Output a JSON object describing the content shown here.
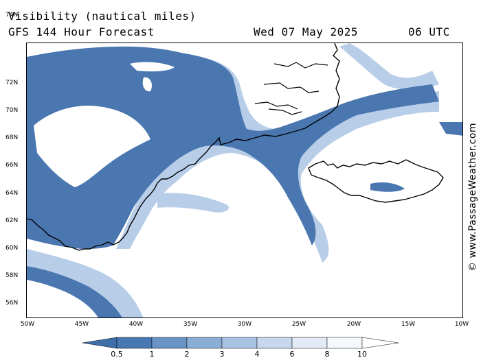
{
  "header": {
    "title": "Visibility (nautical miles)",
    "model": "GFS 144 Hour Forecast",
    "date": "Wed 07 May 2025",
    "time": "06 UTC"
  },
  "credit": "© www.PassageWeather.com",
  "axes": {
    "lat_labels": [
      "74N",
      "72N",
      "70N",
      "68N",
      "66N",
      "64N",
      "62N",
      "60N",
      "58N",
      "56N"
    ],
    "lon_labels": [
      "50W",
      "45W",
      "40W",
      "35W",
      "30W",
      "25W",
      "20W",
      "15W",
      "10W"
    ]
  },
  "legend": {
    "labels": [
      "0.5",
      "1",
      "2",
      "3",
      "4",
      "6",
      "8",
      "10"
    ],
    "colors": [
      "#3e6fa9",
      "#4878b3",
      "#6a93c6",
      "#8aaed6",
      "#a8c3e2",
      "#c7d8ee",
      "#e2ebf6",
      "#f5f8fc",
      "#ffffff"
    ]
  },
  "map_colors": {
    "low": "#4a77b0",
    "mid": "#7fa3d0",
    "light": "#b7cde8",
    "coast": "#000000"
  }
}
